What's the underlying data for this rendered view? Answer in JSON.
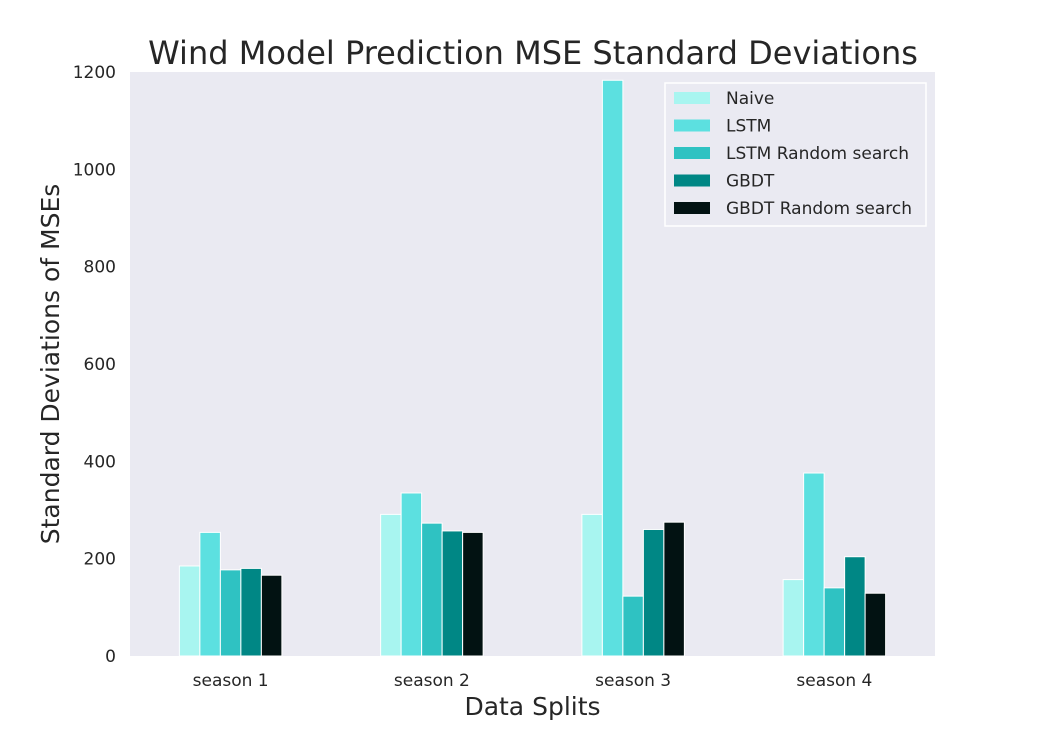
{
  "chart_data": {
    "type": "bar",
    "title": "Wind Model Prediction MSE Standard Deviations",
    "xlabel": "Data Splits",
    "ylabel": "Standard Deviations of MSEs",
    "categories": [
      "season 1",
      "season 2",
      "season 3",
      "season 4"
    ],
    "ylim": [
      0,
      1200
    ],
    "yticks": [
      0,
      200,
      400,
      600,
      800,
      1000,
      1200
    ],
    "grid": false,
    "legend_position": "top-right",
    "series": [
      {
        "name": "Naive",
        "color": "#a8f5f0",
        "values": [
          185,
          291,
          291,
          157
        ]
      },
      {
        "name": "LSTM",
        "color": "#5ce0e0",
        "values": [
          254,
          335,
          1183,
          376
        ]
      },
      {
        "name": "LSTM Random search",
        "color": "#2fc2c2",
        "values": [
          177,
          273,
          123,
          140
        ]
      },
      {
        "name": "GBDT",
        "color": "#008785",
        "values": [
          180,
          257,
          260,
          204
        ]
      },
      {
        "name": "GBDT Random search",
        "color": "#021212",
        "values": [
          166,
          254,
          275,
          129
        ]
      }
    ]
  }
}
